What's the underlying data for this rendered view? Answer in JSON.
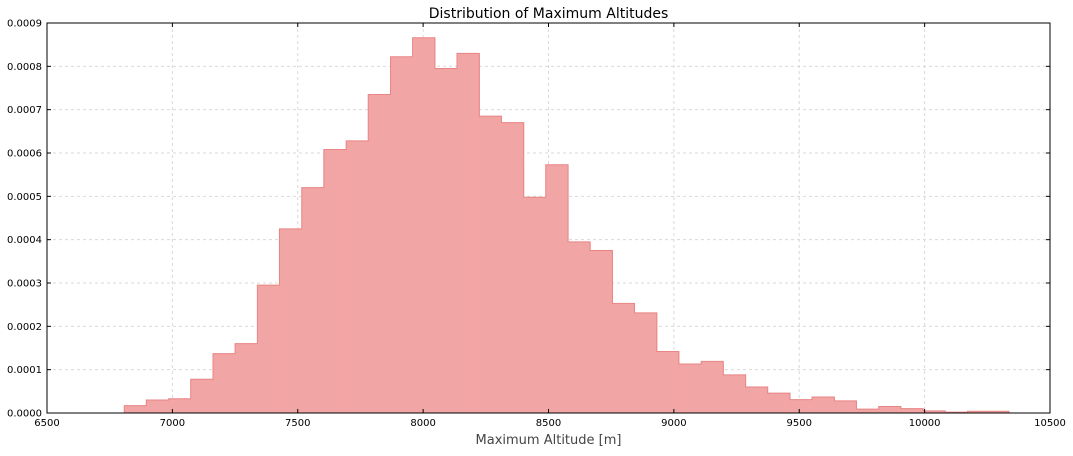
{
  "chart_data": {
    "type": "bar",
    "title": "Distribution of Maximum Altitudes",
    "xlabel": "Maximum Altitude [m]",
    "ylabel": "",
    "xlim": [
      6500,
      10500
    ],
    "ylim": [
      0,
      0.0009
    ],
    "x_ticks": [
      "6500",
      "7000",
      "7500",
      "8000",
      "8500",
      "9000",
      "9500",
      "10000",
      "10500"
    ],
    "y_ticks": [
      "0.0000",
      "0.0001",
      "0.0002",
      "0.0003",
      "0.0004",
      "0.0005",
      "0.0006",
      "0.0007",
      "0.0008",
      "0.0009"
    ],
    "grid": true,
    "legend": "none",
    "fill_color": "#f2a5a5",
    "edge_color": "#e88585",
    "bin_edges": [
      6808,
      6896,
      6985,
      7073,
      7162,
      7250,
      7339,
      7427,
      7516,
      7604,
      7693,
      7781,
      7870,
      7958,
      8047,
      8135,
      8224,
      8312,
      8401,
      8489,
      8578,
      8666,
      8755,
      8843,
      8932,
      9020,
      9109,
      9197,
      9286,
      9374,
      9463,
      9551,
      9640,
      9728,
      9817,
      9905,
      9994,
      10082,
      10171,
      10259,
      10336
    ],
    "values": [
      1.7e-05,
      3e-05,
      3.3e-05,
      7.8e-05,
      0.000137,
      0.00016,
      0.000295,
      0.000425,
      0.00052,
      0.000608,
      0.000628,
      0.000735,
      0.000822,
      0.000866,
      0.000795,
      0.00083,
      0.000685,
      0.00067,
      0.000498,
      0.000573,
      0.000395,
      0.000375,
      0.000253,
      0.000231,
      0.000142,
      0.000113,
      0.000119,
      8.8e-05,
      6e-05,
      4.6e-05,
      3.1e-05,
      3.7e-05,
      2.8e-05,
      9e-06,
      1.5e-05,
      1e-05,
      5e-06,
      2e-06,
      4e-06,
      4e-06
    ]
  }
}
